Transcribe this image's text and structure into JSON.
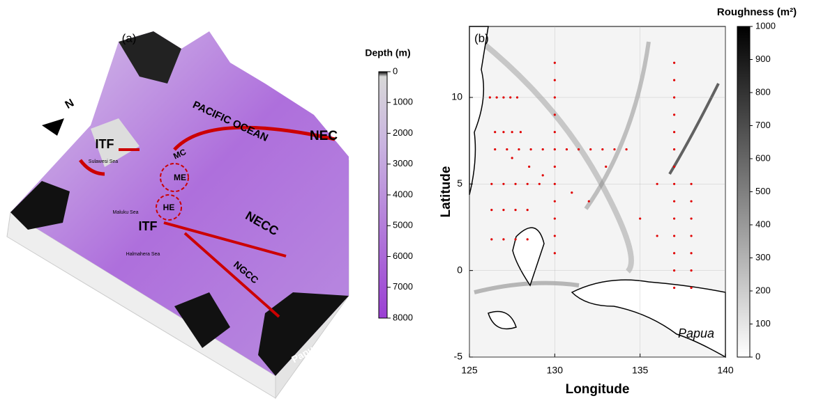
{
  "panel_a": {
    "label": "(a)",
    "colorbar": {
      "title": "Depth (m)",
      "lim": [
        0,
        8000
      ],
      "ticks": [
        0,
        1000,
        2000,
        3000,
        4000,
        5000,
        6000,
        7000,
        8000
      ]
    },
    "labels": [
      "ITF",
      "Sulawesi Sea",
      "MC",
      "ME",
      "HE",
      "Maluku Sea",
      "Halmahera Sea",
      "ITF",
      "PACIFIC OCEAN",
      "NEC",
      "NECC",
      "NGCC",
      "Papua",
      "N"
    ]
  },
  "panel_b": {
    "label": "(b)",
    "xlabel": "Longitude",
    "ylabel": "Latitude",
    "xlim": [
      125,
      140
    ],
    "ylim": [
      -5,
      14.1
    ],
    "xticks": [
      125,
      130,
      135,
      140
    ],
    "yticks": [
      -5,
      0,
      5,
      10
    ],
    "annotation": "Papua",
    "colorbar": {
      "title": "Roughness (m²)",
      "lim": [
        0,
        1000
      ],
      "ticks": [
        0,
        100,
        200,
        300,
        400,
        500,
        600,
        700,
        800,
        900,
        1000
      ]
    },
    "stations": [
      [
        126.2,
        10
      ],
      [
        126.6,
        10
      ],
      [
        127.0,
        10
      ],
      [
        127.4,
        10
      ],
      [
        127.8,
        10
      ],
      [
        126.5,
        8
      ],
      [
        127.0,
        8
      ],
      [
        127.5,
        8
      ],
      [
        128.0,
        8
      ],
      [
        126.5,
        7
      ],
      [
        127.2,
        7
      ],
      [
        127.9,
        7
      ],
      [
        128.6,
        7
      ],
      [
        129.3,
        7
      ],
      [
        130.7,
        7
      ],
      [
        131.4,
        7
      ],
      [
        132.1,
        7
      ],
      [
        132.8,
        7
      ],
      [
        133.5,
        7
      ],
      [
        134.2,
        7
      ],
      [
        126.3,
        5
      ],
      [
        127.0,
        5
      ],
      [
        127.7,
        5
      ],
      [
        128.4,
        5
      ],
      [
        129.1,
        5
      ],
      [
        136.0,
        5
      ],
      [
        138.0,
        5
      ],
      [
        126.3,
        3.5
      ],
      [
        127.0,
        3.5
      ],
      [
        127.7,
        3.5
      ],
      [
        128.4,
        3.5
      ],
      [
        126.3,
        1.8
      ],
      [
        127.0,
        1.8
      ],
      [
        127.7,
        1.8
      ],
      [
        128.4,
        1.8
      ],
      [
        130,
        12
      ],
      [
        130,
        11
      ],
      [
        130,
        10
      ],
      [
        130,
        9
      ],
      [
        130,
        8
      ],
      [
        130,
        7
      ],
      [
        130,
        6
      ],
      [
        130,
        5
      ],
      [
        130,
        4
      ],
      [
        130,
        3
      ],
      [
        130,
        2
      ],
      [
        130,
        1
      ],
      [
        137,
        12
      ],
      [
        137,
        11
      ],
      [
        137,
        10
      ],
      [
        137,
        9
      ],
      [
        137,
        8
      ],
      [
        137,
        7
      ],
      [
        137,
        6
      ],
      [
        137,
        5
      ],
      [
        137,
        4
      ],
      [
        137,
        3
      ],
      [
        137,
        2
      ],
      [
        137,
        1
      ],
      [
        137,
        0
      ],
      [
        137,
        -1
      ],
      [
        138,
        4
      ],
      [
        138,
        3
      ],
      [
        138,
        2
      ],
      [
        138,
        1
      ],
      [
        138,
        0
      ],
      [
        138,
        -1
      ],
      [
        127.5,
        6.5
      ],
      [
        128.5,
        6.0
      ],
      [
        129.3,
        5.5
      ],
      [
        131.0,
        4.5
      ],
      [
        132.0,
        4.0
      ],
      [
        133.0,
        6.0
      ],
      [
        135.0,
        3.0
      ],
      [
        136.0,
        2.0
      ]
    ]
  }
}
